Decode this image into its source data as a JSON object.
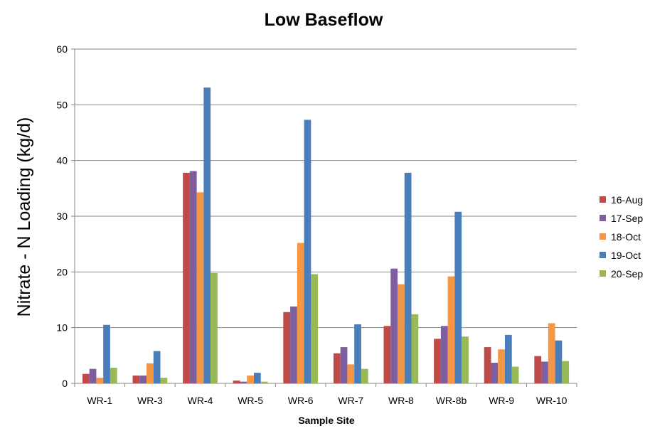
{
  "chart_data": {
    "type": "bar",
    "title": "Low Baseflow",
    "xlabel": "Sample Site",
    "ylabel": "Nitrate - N Loading (kg/d)",
    "ylim": [
      0,
      60
    ],
    "yticks": [
      0,
      10,
      20,
      30,
      40,
      50,
      60
    ],
    "grid": true,
    "legend_position": "right",
    "categories": [
      "WR-1",
      "WR-3",
      "WR-4",
      "WR-5",
      "WR-6",
      "WR-7",
      "WR-8",
      "WR-8b",
      "WR-9",
      "WR-10"
    ],
    "series": [
      {
        "name": "16-Aug",
        "color": "#BE4B48",
        "values": [
          1.7,
          1.4,
          37.8,
          0.5,
          12.8,
          5.4,
          10.3,
          8.0,
          6.5,
          4.9
        ]
      },
      {
        "name": "17-Sep",
        "color": "#7D5FA0",
        "values": [
          2.6,
          1.4,
          38.1,
          0.3,
          13.8,
          6.5,
          20.6,
          10.3,
          3.7,
          3.9
        ]
      },
      {
        "name": "18-Oct",
        "color": "#F59645",
        "values": [
          1.0,
          3.6,
          34.3,
          1.4,
          25.2,
          3.4,
          17.8,
          19.2,
          6.1,
          10.8
        ]
      },
      {
        "name": "19-Oct",
        "color": "#4A7EBB",
        "values": [
          10.5,
          5.8,
          53.1,
          1.9,
          47.3,
          10.6,
          37.8,
          30.8,
          8.7,
          7.7
        ]
      },
      {
        "name": "20-Sep",
        "color": "#98B954",
        "values": [
          2.8,
          1.0,
          19.8,
          0.3,
          19.6,
          2.6,
          12.4,
          8.4,
          3.0,
          4.0
        ]
      }
    ]
  }
}
